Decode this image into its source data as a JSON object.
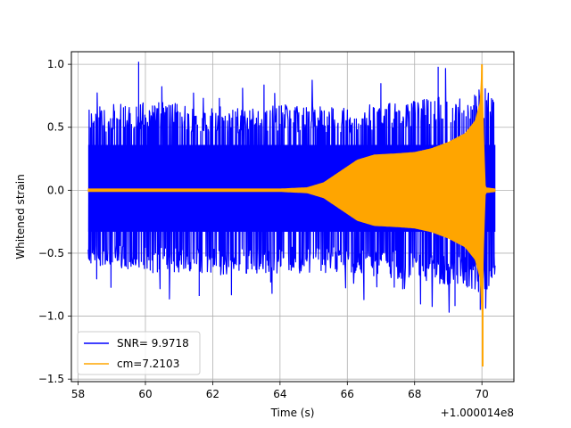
{
  "chart_data": {
    "type": "line",
    "xlabel": "Time (s)",
    "ylabel": "Whitened strain",
    "x_offset_label": "+1.000014e8",
    "xlim": [
      57.8,
      70.95
    ],
    "ylim": [
      -1.52,
      1.1
    ],
    "grid": true,
    "legend_position": "lower-left",
    "xticks": [
      {
        "value": 58,
        "label": "58"
      },
      {
        "value": 60,
        "label": "60"
      },
      {
        "value": 62,
        "label": "62"
      },
      {
        "value": 64,
        "label": "64"
      },
      {
        "value": 66,
        "label": "66"
      },
      {
        "value": 68,
        "label": "68"
      },
      {
        "value": 70,
        "label": "70"
      }
    ],
    "yticks": [
      {
        "value": 1.0,
        "label": "1.0"
      },
      {
        "value": 0.5,
        "label": "0.5"
      },
      {
        "value": 0.0,
        "label": "0.0"
      },
      {
        "value": -0.5,
        "label": "−0.5"
      },
      {
        "value": -1.0,
        "label": "−1.0"
      },
      {
        "value": -1.5,
        "label": "−1.5"
      }
    ],
    "series": [
      {
        "name": "SNR= 9.9718",
        "color": "#0000ff",
        "x_range": [
          58.3,
          70.4
        ],
        "envelope_upper": [
          [
            58.3,
            0.6
          ],
          [
            60.0,
            0.65
          ],
          [
            62.0,
            0.6
          ],
          [
            64.0,
            0.62
          ],
          [
            66.0,
            0.6
          ],
          [
            68.0,
            0.65
          ],
          [
            69.5,
            0.7
          ],
          [
            70.1,
            0.75
          ],
          [
            70.4,
            0.62
          ]
        ],
        "envelope_lower": [
          [
            58.3,
            -0.55
          ],
          [
            60.0,
            -0.6
          ],
          [
            62.0,
            -0.62
          ],
          [
            64.0,
            -0.6
          ],
          [
            66.0,
            -0.6
          ],
          [
            68.0,
            -0.65
          ],
          [
            69.5,
            -0.7
          ],
          [
            70.1,
            -0.75
          ],
          [
            70.4,
            -0.6
          ]
        ],
        "extremes": [
          [
            59.8,
            1.02
          ],
          [
            61.6,
            -0.84
          ],
          [
            69.2,
            -0.92
          ],
          [
            69.95,
            -0.95
          ],
          [
            70.0,
            0.9
          ],
          [
            68.7,
            0.98
          ]
        ]
      },
      {
        "name": "cm=7.2103",
        "color": "#ffa500",
        "x_range": [
          58.3,
          70.4
        ],
        "envelope": [
          [
            58.3,
            0.01
          ],
          [
            64.0,
            0.01
          ],
          [
            64.8,
            0.02
          ],
          [
            65.3,
            0.06
          ],
          [
            65.8,
            0.15
          ],
          [
            66.3,
            0.24
          ],
          [
            66.8,
            0.28
          ],
          [
            67.5,
            0.29
          ],
          [
            68.0,
            0.3
          ],
          [
            68.5,
            0.33
          ],
          [
            69.0,
            0.38
          ],
          [
            69.5,
            0.45
          ],
          [
            69.8,
            0.55
          ],
          [
            69.95,
            0.7
          ],
          [
            70.0,
            1.0
          ],
          [
            70.05,
            0.4
          ],
          [
            70.1,
            0.02
          ],
          [
            70.4,
            0.01
          ]
        ],
        "peak_max": [
          70.0,
          1.0
        ],
        "peak_min": [
          70.02,
          -1.4
        ]
      }
    ]
  }
}
